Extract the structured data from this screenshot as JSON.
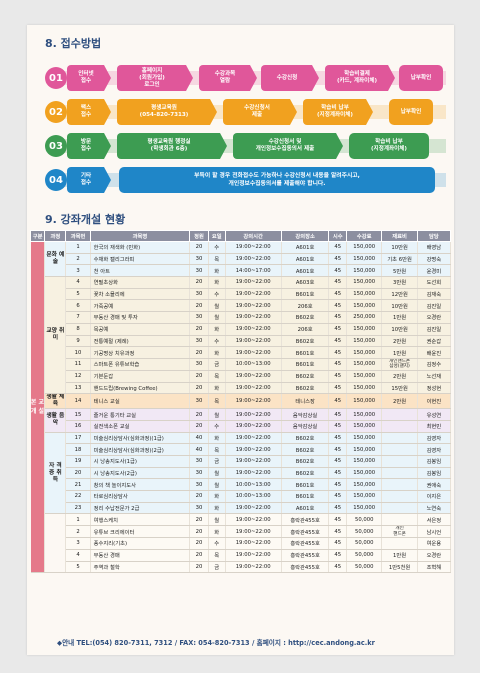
{
  "section8": {
    "title": "8. 접수방법",
    "rows": [
      {
        "num": "01",
        "color": "#e0579a",
        "boxes": [
          "인터넷\n접수",
          "홈페이지\n(회원가입)\n로그인",
          "수강과목\n열람",
          "수강신청",
          "학습비결제\n(카드, 계좌이체)",
          "납부확인"
        ]
      },
      {
        "num": "02",
        "color": "#f1a11f",
        "boxes": [
          "팩스\n접수",
          "평생교육원\n(054-820-7313)",
          "수강신청서\n제출",
          "학습비 납부\n(지정계좌이체)",
          "납부확인"
        ]
      },
      {
        "num": "03",
        "color": "#3d9c52",
        "boxes": [
          "방문\n접수",
          "평생교육원 행정실\n(학생회관 6층)",
          "수강신청서 및\n개인정보수집동의서 제출",
          "학습비 납부\n(지정계좌이체)"
        ]
      },
      {
        "num": "04",
        "color": "#1f86c8",
        "boxes": [
          "기타\n접수",
          "부득이 할 경우 전화접수도 가능하나 수강신청서 내용을 알려주시고,\n개인정보수집동의서를 제출해야 합니다."
        ]
      }
    ]
  },
  "section9": {
    "title": "9. 강좌개설 현황",
    "headers": [
      "구분",
      "과정",
      "과목번",
      "과목명",
      "정원",
      "요일",
      "강의시간",
      "강의장소",
      "시수",
      "수강료",
      "재료비",
      "담당"
    ],
    "groups": [
      {
        "label": "본\n교\n개\n설",
        "color": "#e5798a",
        "span": 30
      },
      {
        "label": "신\n도\n청\n개\n설",
        "color": "#4da0d6",
        "span": 6
      }
    ],
    "categories": [
      {
        "label": "문화\n예술",
        "span": 3,
        "bg": "#e9f4fa"
      },
      {
        "label": "교양\n취미",
        "span": 10,
        "bg": "#f7f1e1"
      },
      {
        "label": "생활\n체육",
        "span": 1,
        "bg": "#fbe3c5"
      },
      {
        "label": "생활\n음악",
        "span": 2,
        "bg": "#f1e8f5"
      },
      {
        "label": "자\n격\n증\n취\n득",
        "span": 7,
        "bg": "#e9f4fa"
      },
      {
        "label": "",
        "span": 7,
        "bg": "#fcf8f3"
      },
      {
        "label": "문화예술\n교양",
        "span": 6,
        "bg": "#e9f4fa"
      }
    ],
    "rows": [
      [
        "1",
        "한국의 재색화 (민화)",
        "20",
        "수",
        "19:00~22:00",
        "A601호",
        "45",
        "150,000",
        "10만원",
        "배영남"
      ],
      [
        "2",
        "수채화 캘리그라피",
        "30",
        "목",
        "19:00~22:00",
        "A601호",
        "45",
        "150,000",
        "기초 6만원",
        "강명숙"
      ],
      [
        "3",
        "천 아트",
        "30",
        "화",
        "14:00~17:00",
        "A601호",
        "45",
        "150,000",
        "5만원",
        "윤경미"
      ],
      [
        "4",
        "연필초상화",
        "20",
        "화",
        "19:00~22:00",
        "A603호",
        "45",
        "150,000",
        "3만원",
        "도선희"
      ],
      [
        "5",
        "꽃차 소믈리에",
        "30",
        "수",
        "19:00~22:00",
        "B601호",
        "45",
        "150,000",
        "12만원",
        "김재숙"
      ],
      [
        "6",
        "가죽공예",
        "20",
        "월",
        "19:00~22:00",
        "206호",
        "45",
        "150,000",
        "10만원",
        "김진일"
      ],
      [
        "7",
        "부동산 경매 및 투자",
        "30",
        "월",
        "19:00~22:00",
        "B602호",
        "45",
        "250,000",
        "1만원",
        "오경란"
      ],
      [
        "8",
        "목공예",
        "20",
        "화",
        "19:00~22:00",
        "206호",
        "45",
        "150,000",
        "10만원",
        "김진일"
      ],
      [
        "9",
        "전통예절 (제례)",
        "30",
        "수",
        "19:00~22:00",
        "B602호",
        "45",
        "150,000",
        "2만원",
        "권순갑"
      ],
      [
        "10",
        "기공명상 치유과정",
        "20",
        "화",
        "19:00~22:00",
        "B601호",
        "45",
        "150,000",
        "1만원",
        "배윤진"
      ],
      [
        "11",
        "스마트폰 유튜브학습",
        "30",
        "금",
        "10:00~13:00",
        "B601호",
        "45",
        "150,000",
        "개인핸드폰\n삼성(갤지)",
        "김정수"
      ],
      [
        "12",
        "기본둔갑",
        "20",
        "목",
        "19:00~22:00",
        "B602호",
        "45",
        "150,000",
        "2만원",
        "노선재"
      ],
      [
        "13",
        "핸드드립(Brewing Coffee)",
        "20",
        "화",
        "19:00~22:00",
        "B602호",
        "45",
        "150,000",
        "15만원",
        "정성현"
      ],
      [
        "14",
        "테니스 교실",
        "30",
        "목",
        "19:00~22:00",
        "테니스장",
        "45",
        "150,000",
        "2만원",
        "이현진"
      ],
      [
        "15",
        "즐거운 통기타 교실",
        "20",
        "월",
        "19:00~22:00",
        "음악감상실",
        "45",
        "150,000",
        "",
        "유성연"
      ],
      [
        "16",
        "실전색소폰 교실",
        "20",
        "수",
        "19:00~22:00",
        "음악감상실",
        "45",
        "150,000",
        "",
        "최현민"
      ],
      [
        "17",
        "미술심리상담사(심화과정)(1급)",
        "40",
        "화",
        "19:00~22:00",
        "B602호",
        "45",
        "150,000",
        "",
        "김영자"
      ],
      [
        "18",
        "미술심리상담사(심화과정)(2급)",
        "40",
        "목",
        "19:00~22:00",
        "B602호",
        "45",
        "150,000",
        "",
        "김영자"
      ],
      [
        "19",
        "시 낭송지도사(1급)",
        "30",
        "금",
        "19:00~22:00",
        "B602호",
        "45",
        "150,000",
        "",
        "김봉임"
      ],
      [
        "20",
        "시 낭송지도사(2급)",
        "30",
        "월",
        "19:00~22:00",
        "B602호",
        "45",
        "150,000",
        "",
        "김봉임"
      ],
      [
        "21",
        "창의 책 놀이지도사",
        "30",
        "월",
        "10:00~13:00",
        "B601호",
        "45",
        "150,000",
        "",
        "권애숙"
      ],
      [
        "22",
        "타로심리상담사",
        "20",
        "화",
        "10:00~13:00",
        "B601호",
        "45",
        "150,000",
        "",
        "이지은"
      ],
      [
        "23",
        "정리 수납전문가 2급",
        "30",
        "화",
        "19:00~22:00",
        "A601호",
        "45",
        "150,000",
        "",
        "노연숙"
      ],
      [
        "1",
        "여행스케치",
        "20",
        "월",
        "19:00~22:00",
        "흥락관455호",
        "45",
        "50,000",
        "",
        "서은정"
      ],
      [
        "2",
        "유튜브 크리에이터",
        "20",
        "화",
        "19:00~22:00",
        "흥락관455호",
        "45",
        "50,000",
        "개인\n핸드폰",
        "남시언"
      ],
      [
        "3",
        "풍수지리(기초)",
        "20",
        "수",
        "19:00~22:00",
        "흥락관455호",
        "45",
        "50,000",
        "",
        "여운용"
      ],
      [
        "4",
        "부동산 경매",
        "20",
        "목",
        "19:00~22:00",
        "흥락관455호",
        "45",
        "50,000",
        "1만원",
        "오경란"
      ],
      [
        "5",
        "주역과 철학",
        "20",
        "금",
        "19:00~22:00",
        "흥락관455호",
        "45",
        "50,000",
        "1만5천원",
        "조혁해"
      ]
    ]
  },
  "footer": "◆안내  TEL:(054) 820-7311, 7312 / FAX: 054-820-7313 / 홈페이지 : http://cec.andong.ac.kr"
}
